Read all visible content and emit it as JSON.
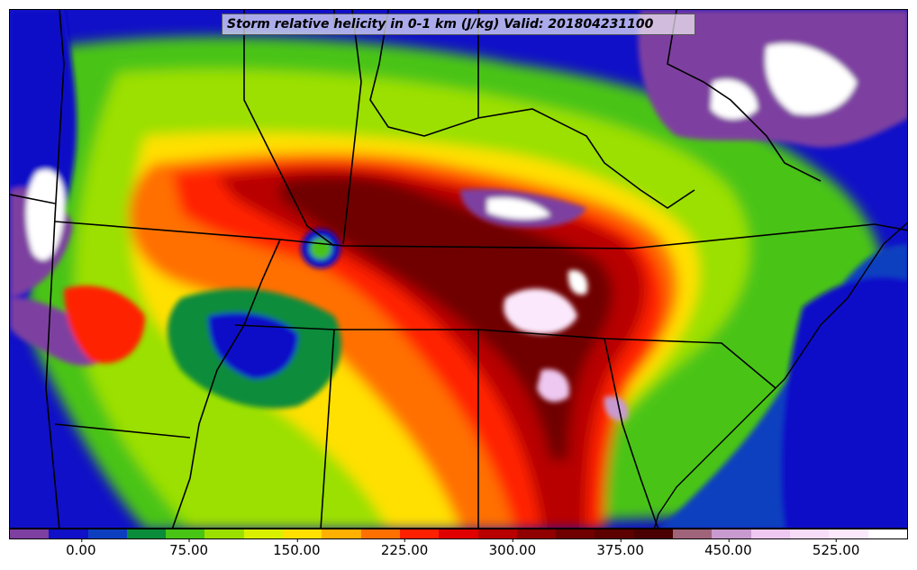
{
  "title": "Storm relative helicity in 0-1 km (J/kg) Valid: 201804231100",
  "colorbar": {
    "colors": [
      "#7e3fa0",
      "#1010c8",
      "#0c3fbf",
      "#0a8c3a",
      "#48c414",
      "#9be000",
      "#d9f000",
      "#ffe000",
      "#ffb000",
      "#ff7000",
      "#ff2000",
      "#e00000",
      "#b80000",
      "#900000",
      "#700000",
      "#5c0000",
      "#4a0000",
      "#a0647a",
      "#c89ad0",
      "#eec8f0",
      "#f6dcf6",
      "#fce8fc",
      "#ffffff"
    ],
    "ticks": [
      {
        "label": "0.00",
        "value": 0
      },
      {
        "label": "75.00",
        "value": 75
      },
      {
        "label": "150.00",
        "value": 150
      },
      {
        "label": "225.00",
        "value": 225
      },
      {
        "label": "300.00",
        "value": 300
      },
      {
        "label": "375.00",
        "value": 375
      },
      {
        "label": "450.00",
        "value": 450
      },
      {
        "label": "525.00",
        "value": 525
      }
    ],
    "min": -50,
    "max": 575
  },
  "map": {
    "background": "#1010c8"
  }
}
